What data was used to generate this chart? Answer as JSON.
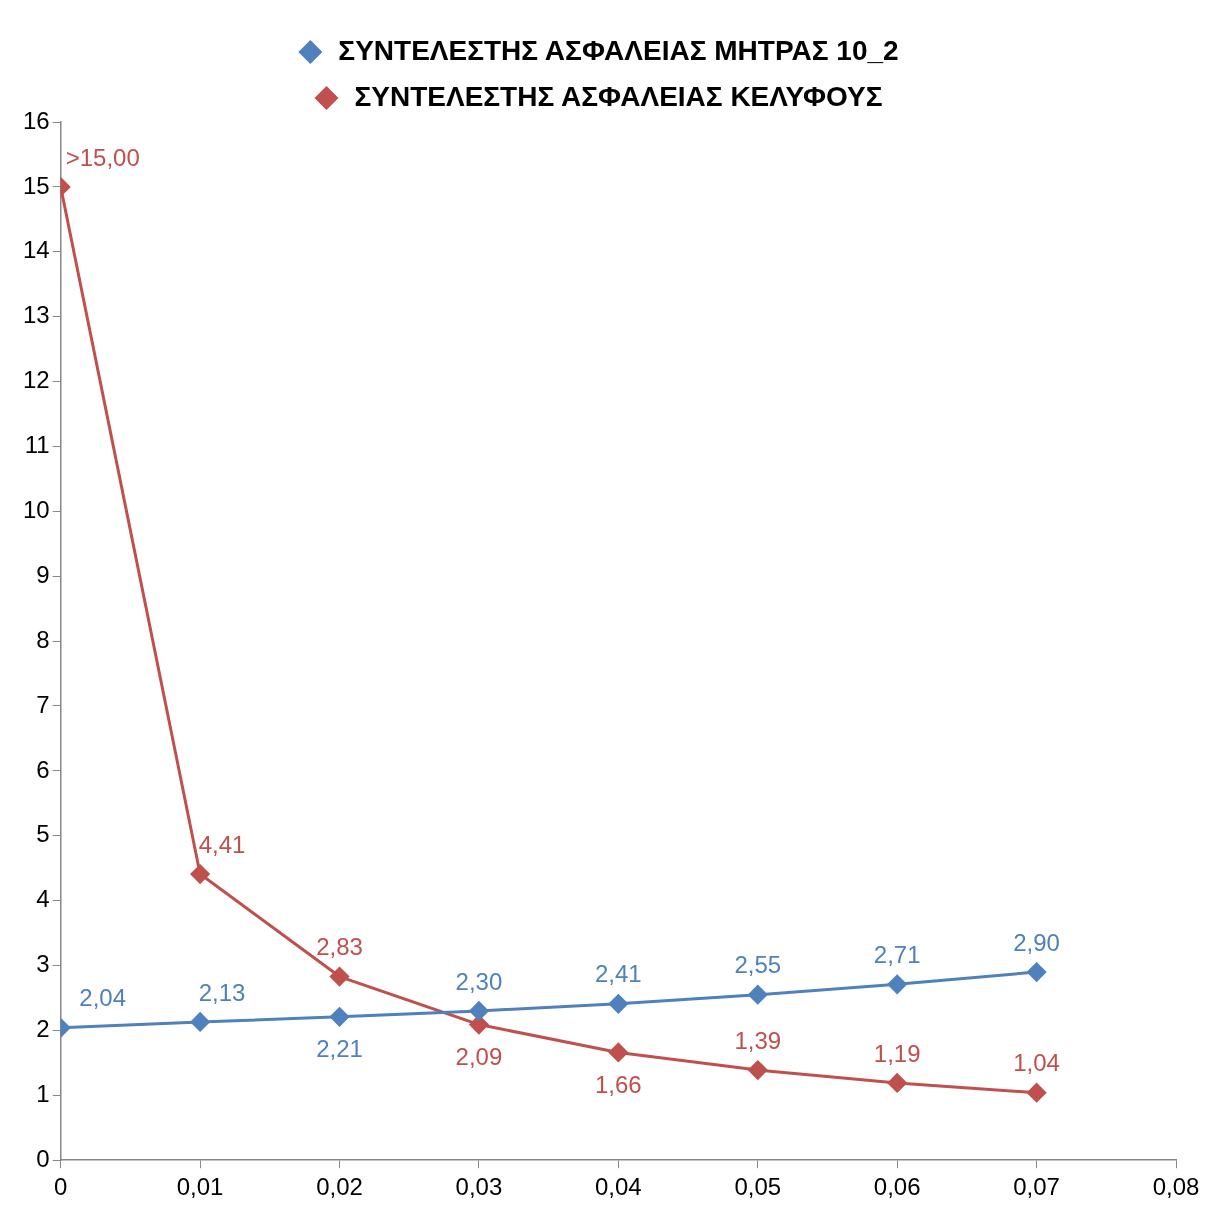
{
  "chart_data": {
    "type": "line",
    "x": [
      0,
      0.01,
      0.02,
      0.03,
      0.04,
      0.05,
      0.06,
      0.07
    ],
    "series": [
      {
        "name": "ΣΥΝΤΕΛΕΣΤΗΣ ΑΣΦΑΛΕΙΑΣ ΜΗΤΡΑΣ 10_2",
        "color": "#4f81bd",
        "values": [
          2.04,
          2.13,
          2.21,
          2.3,
          2.41,
          2.55,
          2.71,
          2.9
        ],
        "value_labels": [
          "2,04",
          "2,13",
          "2,21",
          "2,30",
          "2,41",
          "2,55",
          "2,71",
          "2,90"
        ]
      },
      {
        "name": "ΣΥΝΤΕΛΕΣΤΗΣ ΑΣΦΑΛΕΙΑΣ ΚΕΛΥΦΟΥΣ",
        "color": "#c0504d",
        "values": [
          15,
          4.41,
          2.83,
          2.09,
          1.66,
          1.39,
          1.19,
          1.04
        ],
        "value_labels": [
          ">15,00",
          "4,41",
          "2,83",
          "2,09",
          "1,66",
          "1,39",
          "1,19",
          "1,04"
        ]
      }
    ],
    "xlim": [
      0,
      0.08
    ],
    "xticks": [
      {
        "value": 0,
        "label": "0"
      },
      {
        "value": 0.01,
        "label": "0,01"
      },
      {
        "value": 0.02,
        "label": "0,02"
      },
      {
        "value": 0.03,
        "label": "0,03"
      },
      {
        "value": 0.04,
        "label": "0,04"
      },
      {
        "value": 0.05,
        "label": "0,05"
      },
      {
        "value": 0.06,
        "label": "0,06"
      },
      {
        "value": 0.07,
        "label": "0,07"
      },
      {
        "value": 0.08,
        "label": "0,08"
      }
    ],
    "ylim": [
      0,
      16
    ],
    "yticks": [
      0,
      1,
      2,
      3,
      4,
      5,
      6,
      7,
      8,
      9,
      10,
      11,
      12,
      13,
      14,
      15,
      16
    ],
    "grid": false,
    "legend": "top",
    "marker": "diamond",
    "line_style": "solid"
  }
}
